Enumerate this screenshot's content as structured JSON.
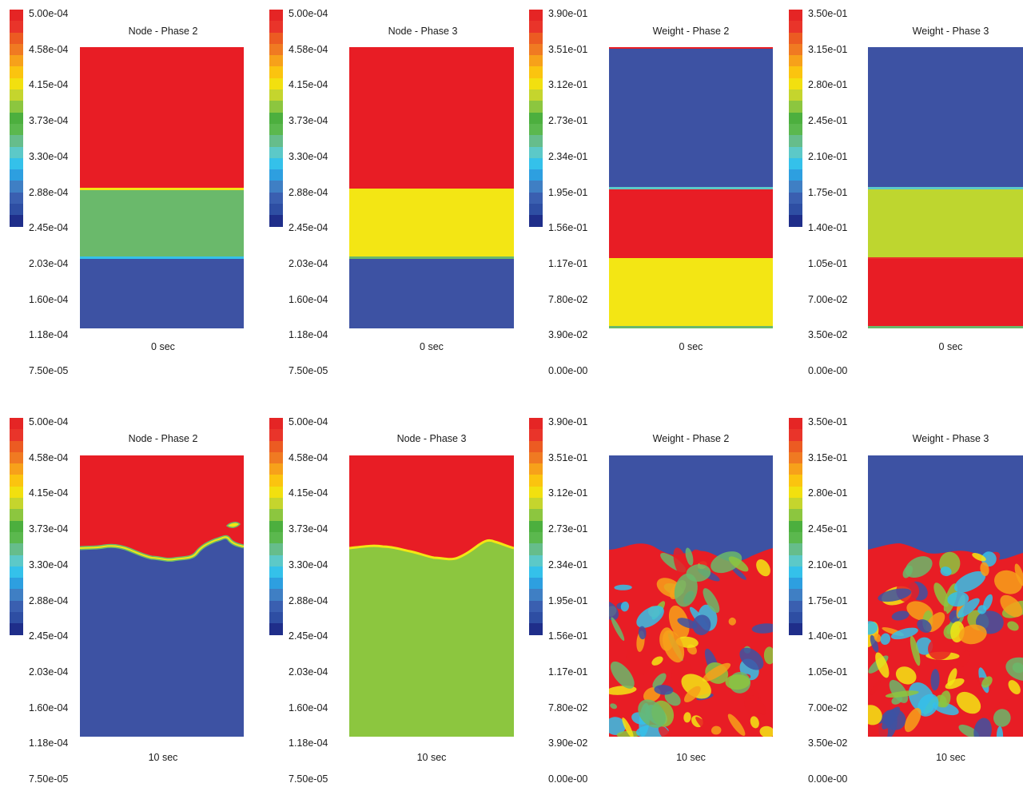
{
  "colorbar": [
    "#1f2e8a",
    "#2e4ea3",
    "#3a5fb0",
    "#3f7fc4",
    "#2d9fe0",
    "#34c1ea",
    "#5cc9c8",
    "#66bd8b",
    "#5bb84e",
    "#4caf3e",
    "#8cc63f",
    "#c5d52d",
    "#f2e00f",
    "#fbc40f",
    "#f7a11a",
    "#f07a22",
    "#ec5b22",
    "#e9342a",
    "#e52525"
  ],
  "colors": {
    "red": "#e81d25",
    "green": "#6ab96b",
    "blue": "#3d52a3",
    "yellow": "#f3e614",
    "lime": "#8cc63f",
    "yellowgreen": "#bed62f"
  },
  "panels": [
    {
      "title": "Node - Phase 2",
      "time": "0 sec",
      "ticks": [
        "5.00e-04",
        "4.58e-04",
        "4.15e-04",
        "3.73e-04",
        "3.30e-04",
        "2.88e-04",
        "2.45e-04",
        "2.03e-04",
        "1.60e-04",
        "1.18e-04",
        "7.50e-05"
      ]
    },
    {
      "title": "Node - Phase 3",
      "time": "0 sec",
      "ticks": [
        "5.00e-04",
        "4.58e-04",
        "4.15e-04",
        "3.73e-04",
        "3.30e-04",
        "2.88e-04",
        "2.45e-04",
        "2.03e-04",
        "1.60e-04",
        "1.18e-04",
        "7.50e-05"
      ]
    },
    {
      "title": "Weight - Phase 2",
      "time": "0 sec",
      "ticks": [
        "3.90e-01",
        "3.51e-01",
        "3.12e-01",
        "2.73e-01",
        "2.34e-01",
        "1.95e-01",
        "1.56e-01",
        "1.17e-01",
        "7.80e-02",
        "3.90e-02",
        "0.00e-00"
      ]
    },
    {
      "title": "Weight - Phase 3",
      "time": "0 sec",
      "ticks": [
        "3.50e-01",
        "3.15e-01",
        "2.80e-01",
        "2.45e-01",
        "2.10e-01",
        "1.75e-01",
        "1.40e-01",
        "1.05e-01",
        "7.00e-02",
        "3.50e-02",
        "0.00e-00"
      ]
    },
    {
      "title": "Node - Phase 2",
      "time": "10 sec",
      "ticks": [
        "5.00e-04",
        "4.58e-04",
        "4.15e-04",
        "3.73e-04",
        "3.30e-04",
        "2.88e-04",
        "2.45e-04",
        "2.03e-04",
        "1.60e-04",
        "1.18e-04",
        "7.50e-05"
      ]
    },
    {
      "title": "Node - Phase 3",
      "time": "10 sec",
      "ticks": [
        "5.00e-04",
        "4.58e-04",
        "4.15e-04",
        "3.73e-04",
        "3.30e-04",
        "2.88e-04",
        "2.45e-04",
        "2.03e-04",
        "1.60e-04",
        "1.18e-04",
        "7.50e-05"
      ]
    },
    {
      "title": "Weight - Phase 2",
      "time": "10 sec",
      "ticks": [
        "3.90e-01",
        "3.51e-01",
        "3.12e-01",
        "2.73e-01",
        "2.34e-01",
        "1.95e-01",
        "1.56e-01",
        "1.17e-01",
        "7.80e-02",
        "3.90e-02",
        "0.00e-00"
      ]
    },
    {
      "title": "Weight - Phase 3",
      "time": "10 sec",
      "ticks": [
        "3.50e-01",
        "3.15e-01",
        "2.80e-01",
        "2.45e-01",
        "2.10e-01",
        "1.75e-01",
        "1.40e-01",
        "1.05e-01",
        "7.00e-02",
        "3.50e-02",
        "0.00e-00"
      ]
    }
  ]
}
